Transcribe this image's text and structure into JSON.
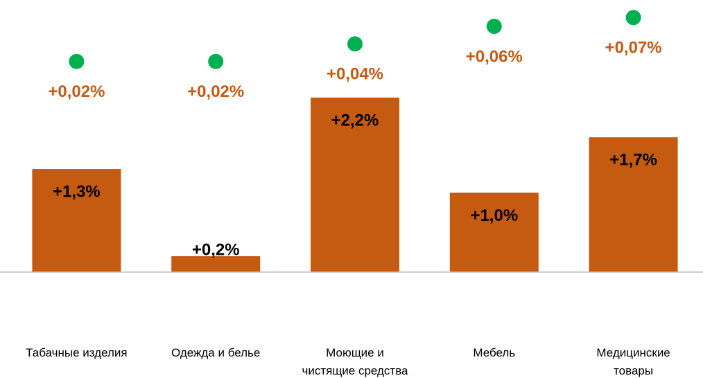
{
  "chart_data": {
    "type": "bar",
    "categories": [
      "Табачные изделия",
      "Одежда и белье",
      "Моющие и\nчистящие средства",
      "Мебель",
      "Медицинские\nтовары"
    ],
    "series": [
      {
        "color": "#c55a11",
        "values": [
          1.3,
          0.2,
          2.2,
          1.0,
          1.7
        ],
        "value_labels": [
          "+1,3%",
          "+0,2%",
          "+2,2%",
          "+1,0%",
          "+1,7%"
        ]
      },
      {
        "type": "scatter",
        "axis": "y2",
        "color": "#00b050",
        "label_color": "#c55a11",
        "values": [
          0.02,
          0.02,
          0.04,
          0.06,
          0.07
        ],
        "value_labels": [
          "+0,02%",
          "+0,02%",
          "+0,04%",
          "+0,06%",
          "+0,07%"
        ]
      }
    ],
    "ylim": [
      0,
      3.43
    ],
    "y2lim": [
      -0.22,
      0.09
    ]
  }
}
